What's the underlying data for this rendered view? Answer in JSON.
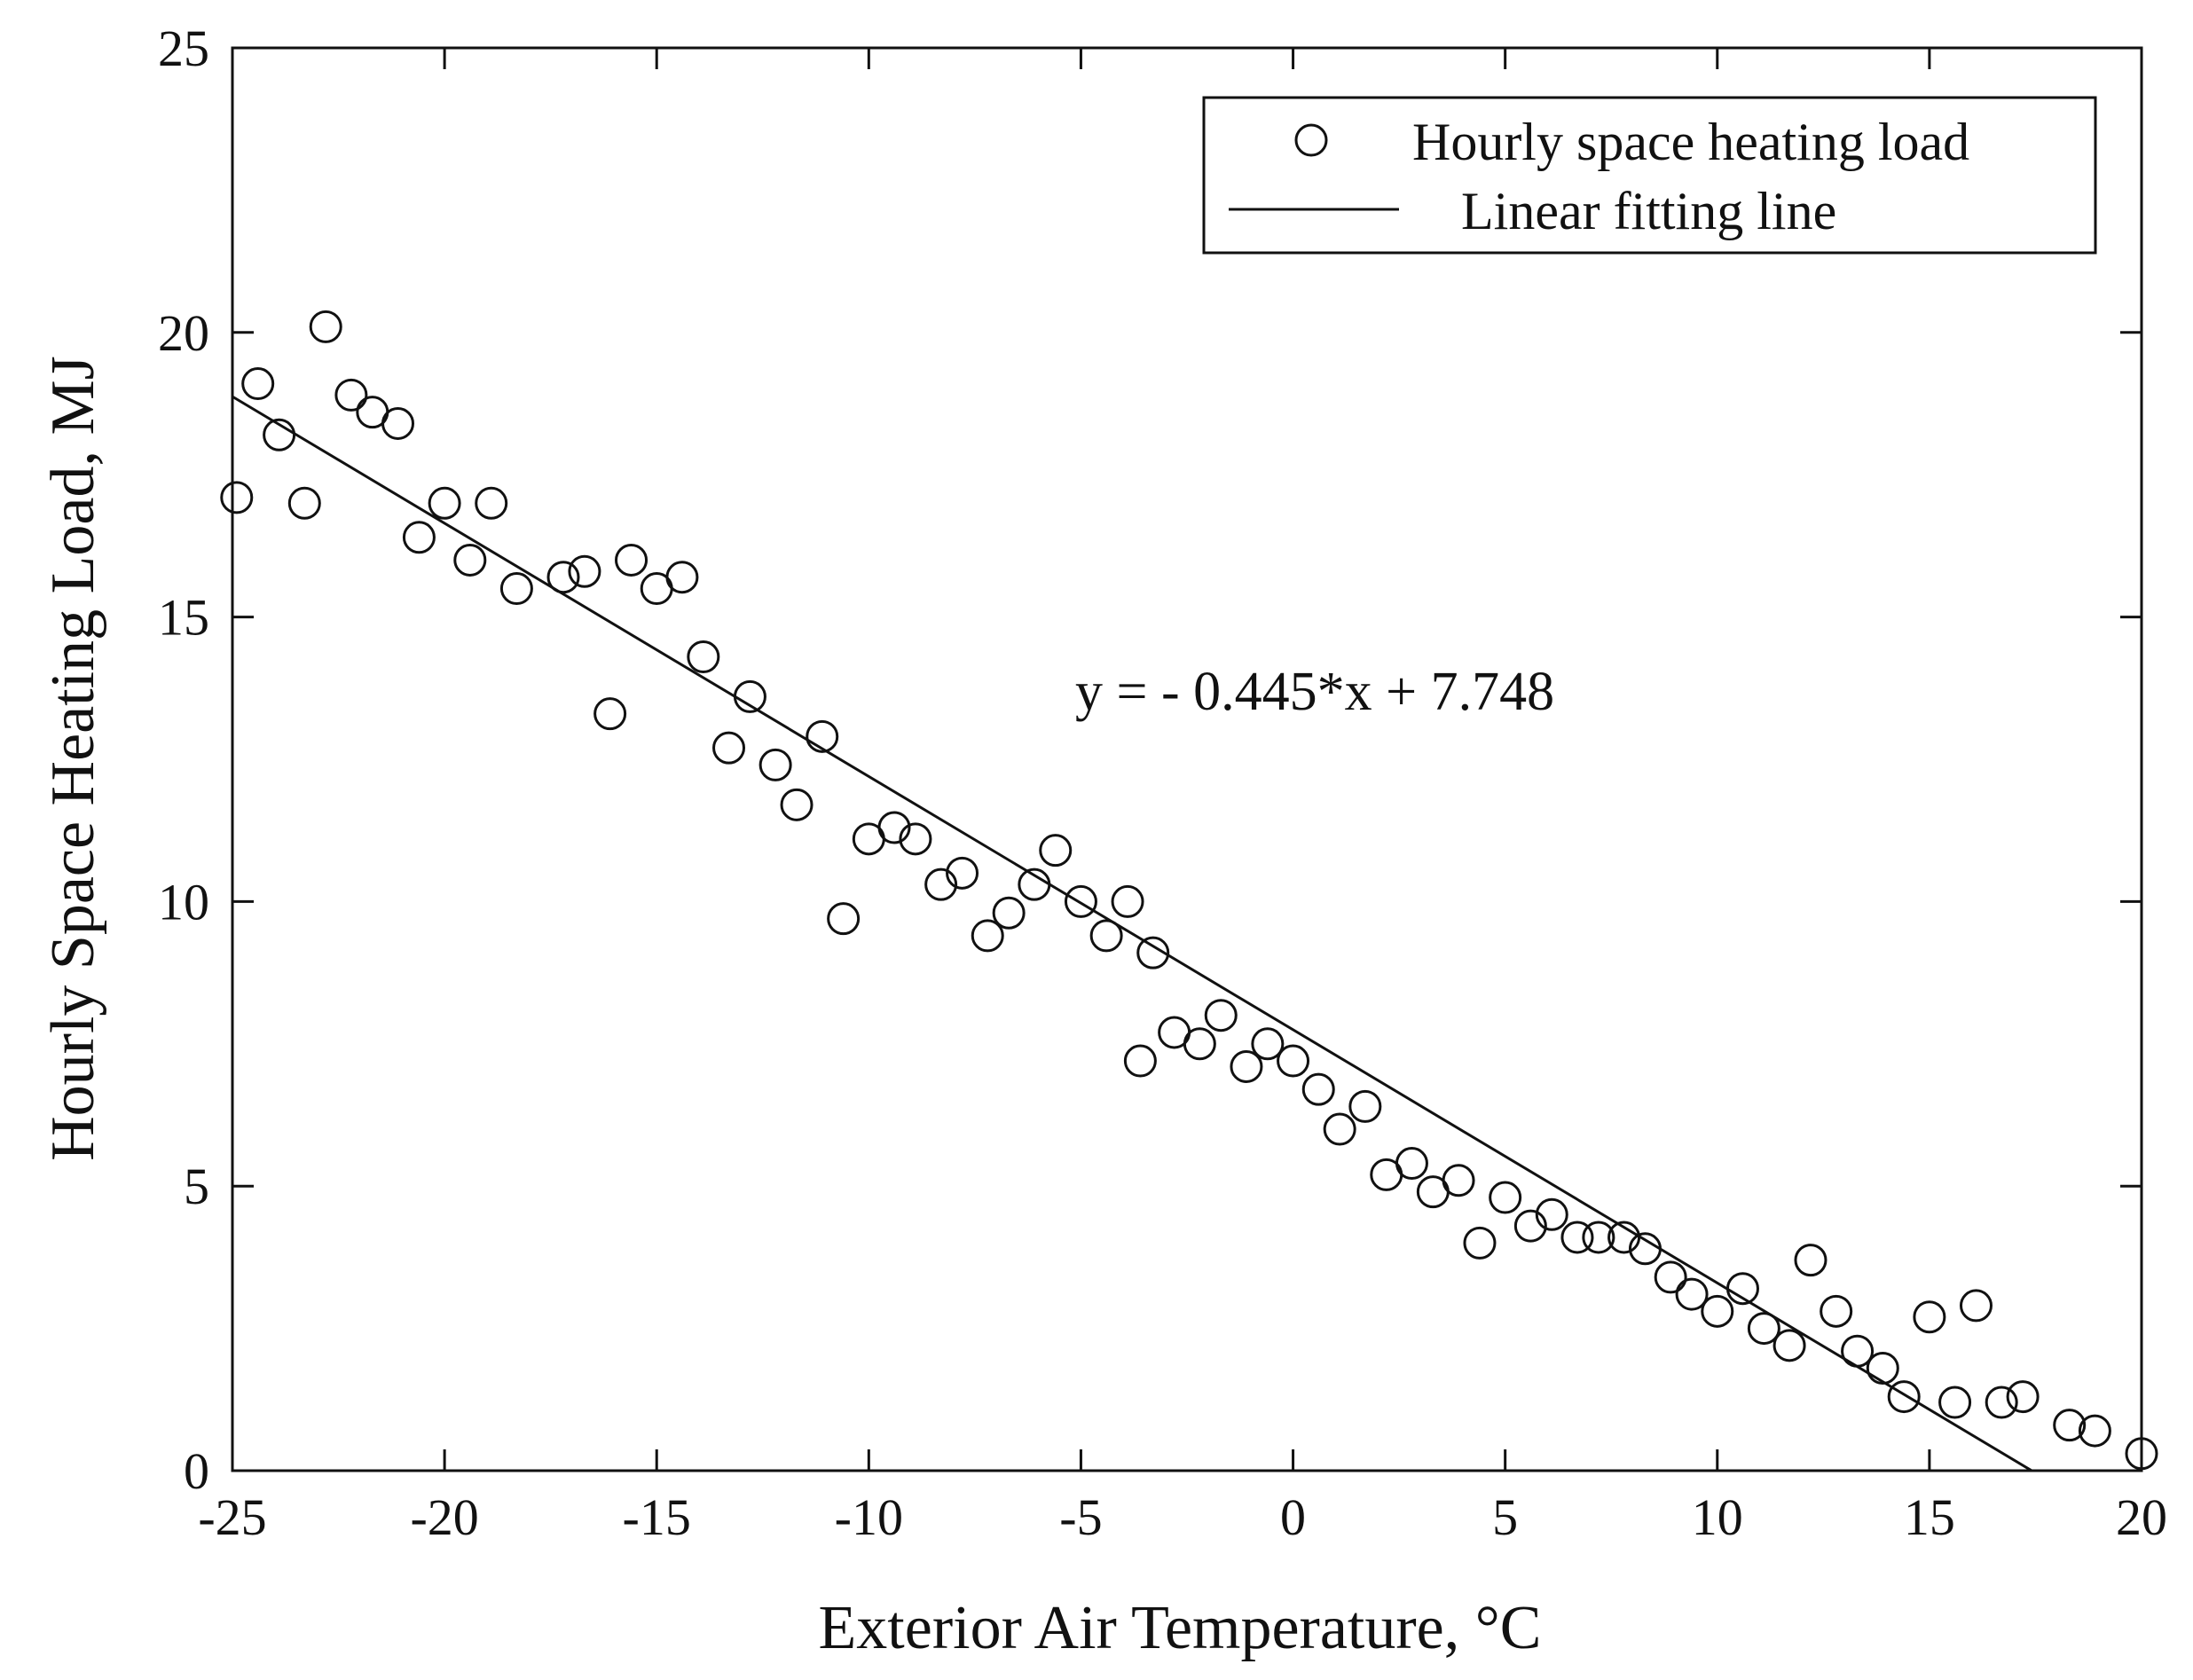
{
  "chart_data": {
    "type": "scatter",
    "title": "",
    "xlabel": "Exterior Air Temperature, °C",
    "ylabel": "Hourly Space Heating Load, MJ",
    "xlim": [
      -25,
      20
    ],
    "ylim": [
      0,
      25
    ],
    "xticks": [
      -25,
      -20,
      -15,
      -10,
      -5,
      0,
      5,
      10,
      15,
      20
    ],
    "yticks": [
      0,
      5,
      10,
      15,
      20,
      25
    ],
    "grid": false,
    "legend_position": "top-right",
    "annotation": "y = - 0.445*x + 7.748",
    "series": [
      {
        "name": "Hourly space heating load",
        "marker": "circle",
        "points": [
          {
            "x": -24.9,
            "y": 17.1
          },
          {
            "x": -24.4,
            "y": 19.1
          },
          {
            "x": -23.9,
            "y": 18.2
          },
          {
            "x": -23.3,
            "y": 17.0
          },
          {
            "x": -22.8,
            "y": 20.1
          },
          {
            "x": -22.2,
            "y": 18.9
          },
          {
            "x": -21.7,
            "y": 18.6
          },
          {
            "x": -21.1,
            "y": 18.4
          },
          {
            "x": -20.6,
            "y": 16.4
          },
          {
            "x": -20.0,
            "y": 17.0
          },
          {
            "x": -19.4,
            "y": 16.0
          },
          {
            "x": -18.9,
            "y": 17.0
          },
          {
            "x": -18.3,
            "y": 15.5
          },
          {
            "x": -17.2,
            "y": 15.7
          },
          {
            "x": -16.7,
            "y": 15.8
          },
          {
            "x": -16.1,
            "y": 13.3
          },
          {
            "x": -15.6,
            "y": 16.0
          },
          {
            "x": -15.0,
            "y": 15.5
          },
          {
            "x": -14.4,
            "y": 15.7
          },
          {
            "x": -13.9,
            "y": 14.3
          },
          {
            "x": -13.3,
            "y": 12.7
          },
          {
            "x": -12.8,
            "y": 13.6
          },
          {
            "x": -12.2,
            "y": 12.4
          },
          {
            "x": -11.7,
            "y": 11.7
          },
          {
            "x": -11.1,
            "y": 12.9
          },
          {
            "x": -10.6,
            "y": 9.7
          },
          {
            "x": -10.0,
            "y": 11.1
          },
          {
            "x": -9.4,
            "y": 11.3
          },
          {
            "x": -8.9,
            "y": 11.1
          },
          {
            "x": -8.3,
            "y": 10.3
          },
          {
            "x": -7.8,
            "y": 10.5
          },
          {
            "x": -7.2,
            "y": 9.4
          },
          {
            "x": -6.7,
            "y": 9.8
          },
          {
            "x": -6.1,
            "y": 10.3
          },
          {
            "x": -5.6,
            "y": 10.9
          },
          {
            "x": -5.0,
            "y": 10.0
          },
          {
            "x": -4.4,
            "y": 9.4
          },
          {
            "x": -3.9,
            "y": 10.0
          },
          {
            "x": -3.6,
            "y": 7.2
          },
          {
            "x": -3.3,
            "y": 9.1
          },
          {
            "x": -2.8,
            "y": 7.7
          },
          {
            "x": -2.2,
            "y": 7.5
          },
          {
            "x": -1.7,
            "y": 8.0
          },
          {
            "x": -1.1,
            "y": 7.1
          },
          {
            "x": -0.6,
            "y": 7.5
          },
          {
            "x": 0.0,
            "y": 7.2
          },
          {
            "x": 0.6,
            "y": 6.7
          },
          {
            "x": 1.1,
            "y": 6.0
          },
          {
            "x": 1.7,
            "y": 6.4
          },
          {
            "x": 2.2,
            "y": 5.2
          },
          {
            "x": 2.8,
            "y": 5.4
          },
          {
            "x": 3.3,
            "y": 4.9
          },
          {
            "x": 3.9,
            "y": 5.1
          },
          {
            "x": 4.4,
            "y": 4.0
          },
          {
            "x": 5.0,
            "y": 4.8
          },
          {
            "x": 5.6,
            "y": 4.3
          },
          {
            "x": 6.1,
            "y": 4.5
          },
          {
            "x": 6.7,
            "y": 4.1
          },
          {
            "x": 7.2,
            "y": 4.1
          },
          {
            "x": 7.8,
            "y": 4.1
          },
          {
            "x": 8.3,
            "y": 3.9
          },
          {
            "x": 8.9,
            "y": 3.4
          },
          {
            "x": 9.4,
            "y": 3.1
          },
          {
            "x": 10.0,
            "y": 2.8
          },
          {
            "x": 10.6,
            "y": 3.2
          },
          {
            "x": 11.1,
            "y": 2.5
          },
          {
            "x": 11.7,
            "y": 2.2
          },
          {
            "x": 12.2,
            "y": 3.7
          },
          {
            "x": 12.8,
            "y": 2.8
          },
          {
            "x": 13.3,
            "y": 2.1
          },
          {
            "x": 13.9,
            "y": 1.8
          },
          {
            "x": 14.4,
            "y": 1.3
          },
          {
            "x": 15.0,
            "y": 2.7
          },
          {
            "x": 15.6,
            "y": 1.2
          },
          {
            "x": 16.1,
            "y": 2.9
          },
          {
            "x": 16.7,
            "y": 1.2
          },
          {
            "x": 17.2,
            "y": 1.3
          },
          {
            "x": 18.3,
            "y": 0.8
          },
          {
            "x": 18.9,
            "y": 0.7
          },
          {
            "x": 20.0,
            "y": 0.3
          }
        ]
      },
      {
        "name": "Linear fitting line",
        "marker": "line",
        "slope": -0.445,
        "intercept": 7.748,
        "x_range": [
          -25,
          17.4
        ]
      }
    ]
  }
}
